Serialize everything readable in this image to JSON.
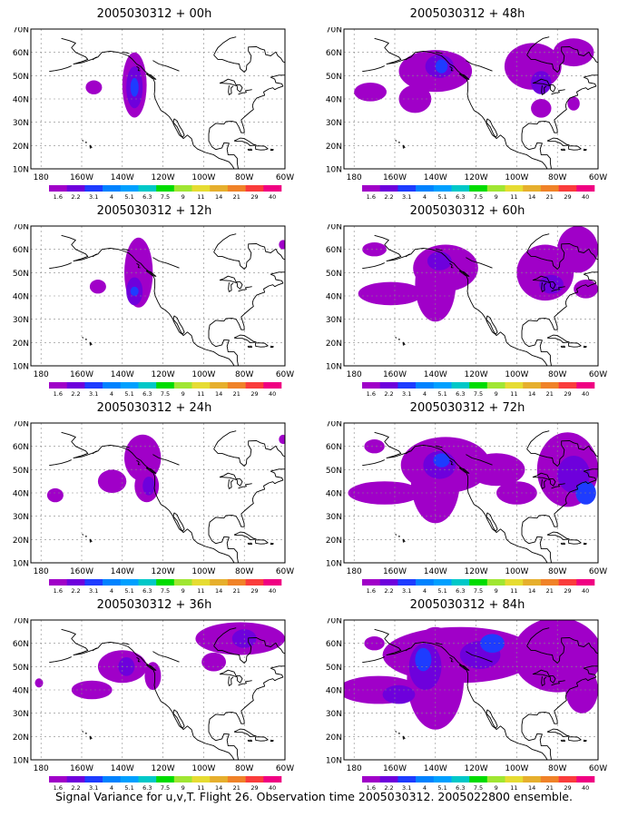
{
  "panels": [
    {
      "title": "2005030312 + 00h",
      "blobs": [
        {
          "lon": -134,
          "lat": 46,
          "rlon": 6,
          "rlat": 14,
          "lvl": 1
        },
        {
          "lon": -134,
          "lat": 45,
          "rlon": 4,
          "rlat": 9,
          "lvl": 2
        },
        {
          "lon": -134,
          "lat": 45,
          "rlon": 2,
          "rlat": 4,
          "lvl": 3
        },
        {
          "lon": -154,
          "lat": 45,
          "rlon": 4,
          "rlat": 3,
          "lvl": 1
        }
      ]
    },
    {
      "title": "2005030312 + 48h",
      "blobs": [
        {
          "lon": -140,
          "lat": 52,
          "rlon": 18,
          "rlat": 9,
          "lvl": 1
        },
        {
          "lon": -138,
          "lat": 54,
          "rlon": 7,
          "rlat": 5,
          "lvl": 2
        },
        {
          "lon": -137,
          "lat": 54,
          "rlon": 3,
          "rlat": 3,
          "lvl": 3
        },
        {
          "lon": -150,
          "lat": 40,
          "rlon": 8,
          "rlat": 6,
          "lvl": 1
        },
        {
          "lon": -172,
          "lat": 43,
          "rlon": 8,
          "rlat": 4,
          "lvl": 1
        },
        {
          "lon": -92,
          "lat": 54,
          "rlon": 14,
          "rlat": 10,
          "lvl": 1
        },
        {
          "lon": -88,
          "lat": 47,
          "rlon": 5,
          "rlat": 5,
          "lvl": 2
        },
        {
          "lon": -72,
          "lat": 60,
          "rlon": 10,
          "rlat": 6,
          "lvl": 1
        },
        {
          "lon": -88,
          "lat": 36,
          "rlon": 5,
          "rlat": 4,
          "lvl": 1
        },
        {
          "lon": -72,
          "lat": 38,
          "rlon": 3,
          "rlat": 3,
          "lvl": 1
        }
      ]
    },
    {
      "title": "2005030312 + 12h",
      "blobs": [
        {
          "lon": -132,
          "lat": 50,
          "rlon": 7,
          "rlat": 15,
          "lvl": 1
        },
        {
          "lon": -134,
          "lat": 42,
          "rlon": 4,
          "rlat": 6,
          "lvl": 2
        },
        {
          "lon": -134,
          "lat": 42,
          "rlon": 2,
          "rlat": 2,
          "lvl": 3
        },
        {
          "lon": -152,
          "lat": 44,
          "rlon": 4,
          "rlat": 3,
          "lvl": 1
        },
        {
          "lon": -61,
          "lat": 62,
          "rlon": 2,
          "rlat": 2,
          "lvl": 1
        }
      ]
    },
    {
      "title": "2005030312 + 60h",
      "blobs": [
        {
          "lon": -135,
          "lat": 52,
          "rlon": 16,
          "rlat": 10,
          "lvl": 1
        },
        {
          "lon": -140,
          "lat": 45,
          "rlon": 10,
          "rlat": 16,
          "lvl": 1
        },
        {
          "lon": -138,
          "lat": 55,
          "rlon": 6,
          "rlat": 4,
          "lvl": 2
        },
        {
          "lon": -162,
          "lat": 41,
          "rlon": 16,
          "rlat": 5,
          "lvl": 1
        },
        {
          "lon": -170,
          "lat": 60,
          "rlon": 6,
          "rlat": 3,
          "lvl": 1
        },
        {
          "lon": -86,
          "lat": 50,
          "rlon": 14,
          "rlat": 12,
          "lvl": 1
        },
        {
          "lon": -83,
          "lat": 45,
          "rlon": 6,
          "rlat": 4,
          "lvl": 2
        },
        {
          "lon": -70,
          "lat": 60,
          "rlon": 10,
          "rlat": 10,
          "lvl": 1
        },
        {
          "lon": -66,
          "lat": 43,
          "rlon": 6,
          "rlat": 4,
          "lvl": 1
        }
      ]
    },
    {
      "title": "2005030312 + 24h",
      "blobs": [
        {
          "lon": -130,
          "lat": 55,
          "rlon": 9,
          "rlat": 10,
          "lvl": 1
        },
        {
          "lon": -128,
          "lat": 43,
          "rlon": 6,
          "rlat": 7,
          "lvl": 1
        },
        {
          "lon": -127,
          "lat": 43,
          "rlon": 3,
          "rlat": 4,
          "lvl": 2
        },
        {
          "lon": -145,
          "lat": 45,
          "rlon": 7,
          "rlat": 5,
          "lvl": 1
        },
        {
          "lon": -173,
          "lat": 39,
          "rlon": 4,
          "rlat": 3,
          "lvl": 1
        },
        {
          "lon": -61,
          "lat": 63,
          "rlon": 2,
          "rlat": 2,
          "lvl": 1
        }
      ]
    },
    {
      "title": "2005030312 + 72h",
      "blobs": [
        {
          "lon": -135,
          "lat": 52,
          "rlon": 22,
          "rlat": 12,
          "lvl": 1
        },
        {
          "lon": -140,
          "lat": 45,
          "rlon": 12,
          "rlat": 18,
          "lvl": 1
        },
        {
          "lon": -138,
          "lat": 52,
          "rlon": 8,
          "rlat": 6,
          "lvl": 2
        },
        {
          "lon": -137,
          "lat": 54,
          "rlon": 4,
          "rlat": 3,
          "lvl": 3
        },
        {
          "lon": -165,
          "lat": 40,
          "rlon": 18,
          "rlat": 5,
          "lvl": 1
        },
        {
          "lon": -110,
          "lat": 50,
          "rlon": 14,
          "rlat": 7,
          "lvl": 1
        },
        {
          "lon": -100,
          "lat": 40,
          "rlon": 10,
          "rlat": 5,
          "lvl": 1
        },
        {
          "lon": -75,
          "lat": 50,
          "rlon": 15,
          "rlat": 16,
          "lvl": 1
        },
        {
          "lon": -72,
          "lat": 48,
          "rlon": 8,
          "rlat": 8,
          "lvl": 2
        },
        {
          "lon": -66,
          "lat": 40,
          "rlon": 5,
          "rlat": 5,
          "lvl": 3
        },
        {
          "lon": -170,
          "lat": 60,
          "rlon": 5,
          "rlat": 3,
          "lvl": 1
        }
      ]
    },
    {
      "title": "2005030312 + 36h",
      "blobs": [
        {
          "lon": -140,
          "lat": 50,
          "rlon": 12,
          "rlat": 7,
          "lvl": 1
        },
        {
          "lon": -138,
          "lat": 50,
          "rlon": 4,
          "rlat": 4,
          "lvl": 2
        },
        {
          "lon": -155,
          "lat": 40,
          "rlon": 10,
          "rlat": 4,
          "lvl": 1
        },
        {
          "lon": -125,
          "lat": 46,
          "rlon": 4,
          "rlat": 6,
          "lvl": 1
        },
        {
          "lon": -82,
          "lat": 62,
          "rlon": 22,
          "rlat": 7,
          "lvl": 1
        },
        {
          "lon": -80,
          "lat": 62,
          "rlon": 6,
          "rlat": 4,
          "lvl": 2
        },
        {
          "lon": -95,
          "lat": 52,
          "rlon": 6,
          "rlat": 4,
          "lvl": 1
        },
        {
          "lon": -181,
          "lat": 43,
          "rlon": 2,
          "rlat": 2,
          "lvl": 1
        }
      ]
    },
    {
      "title": "2005030312 + 84h",
      "blobs": [
        {
          "lon": -128,
          "lat": 55,
          "rlon": 38,
          "rlat": 12,
          "lvl": 1
        },
        {
          "lon": -140,
          "lat": 45,
          "rlon": 14,
          "rlat": 22,
          "lvl": 1
        },
        {
          "lon": -145,
          "lat": 50,
          "rlon": 8,
          "rlat": 10,
          "lvl": 2
        },
        {
          "lon": -146,
          "lat": 53,
          "rlon": 4,
          "rlat": 5,
          "lvl": 3
        },
        {
          "lon": -168,
          "lat": 40,
          "rlon": 20,
          "rlat": 6,
          "lvl": 1
        },
        {
          "lon": -158,
          "lat": 38,
          "rlon": 8,
          "rlat": 4,
          "lvl": 2
        },
        {
          "lon": -118,
          "lat": 55,
          "rlon": 10,
          "rlat": 6,
          "lvl": 2
        },
        {
          "lon": -80,
          "lat": 55,
          "rlon": 22,
          "rlat": 16,
          "lvl": 1
        },
        {
          "lon": -68,
          "lat": 40,
          "rlon": 8,
          "rlat": 10,
          "lvl": 1
        },
        {
          "lon": -112,
          "lat": 60,
          "rlon": 6,
          "rlat": 4,
          "lvl": 3
        },
        {
          "lon": -170,
          "lat": 60,
          "rlon": 5,
          "rlat": 3,
          "lvl": 1
        }
      ]
    }
  ],
  "axes": {
    "x_ticks": [
      {
        "lon": -180,
        "label": "180"
      },
      {
        "lon": -160,
        "label": "160W"
      },
      {
        "lon": -140,
        "label": "140W"
      },
      {
        "lon": -120,
        "label": "120W"
      },
      {
        "lon": -100,
        "label": "100W"
      },
      {
        "lon": -80,
        "label": "80W"
      },
      {
        "lon": -60,
        "label": "60W"
      }
    ],
    "y_ticks": [
      {
        "lat": 10,
        "label": "10N"
      },
      {
        "lat": 20,
        "label": "20N"
      },
      {
        "lat": 30,
        "label": "30N"
      },
      {
        "lat": 40,
        "label": "40N"
      },
      {
        "lat": 50,
        "label": "50N"
      },
      {
        "lat": 60,
        "label": "60N"
      },
      {
        "lat": 70,
        "label": "70N"
      }
    ],
    "lon_range": [
      -185,
      -60
    ],
    "lat_range": [
      10,
      70
    ]
  },
  "colorbar": {
    "labels": [
      "1.6",
      "2.2",
      "3.1",
      "4",
      "5.1",
      "6.3",
      "7.5",
      "9",
      "11",
      "14",
      "21",
      "29",
      "40"
    ],
    "colors": [
      "#a000c8",
      "#6e00dc",
      "#1e3cff",
      "#0082ff",
      "#00a0ff",
      "#00c8c8",
      "#00dc00",
      "#a0e632",
      "#e6dc32",
      "#e6af2d",
      "#f08228",
      "#fa3c3c",
      "#f00082"
    ]
  },
  "fill_colors": {
    "1": "#a000c8",
    "2": "#6e00dc",
    "3": "#1e3cff"
  },
  "footer": "Signal Variance for u,v,T. Flight 26. Observation time 2005030312. 2005022800 ensemble."
}
